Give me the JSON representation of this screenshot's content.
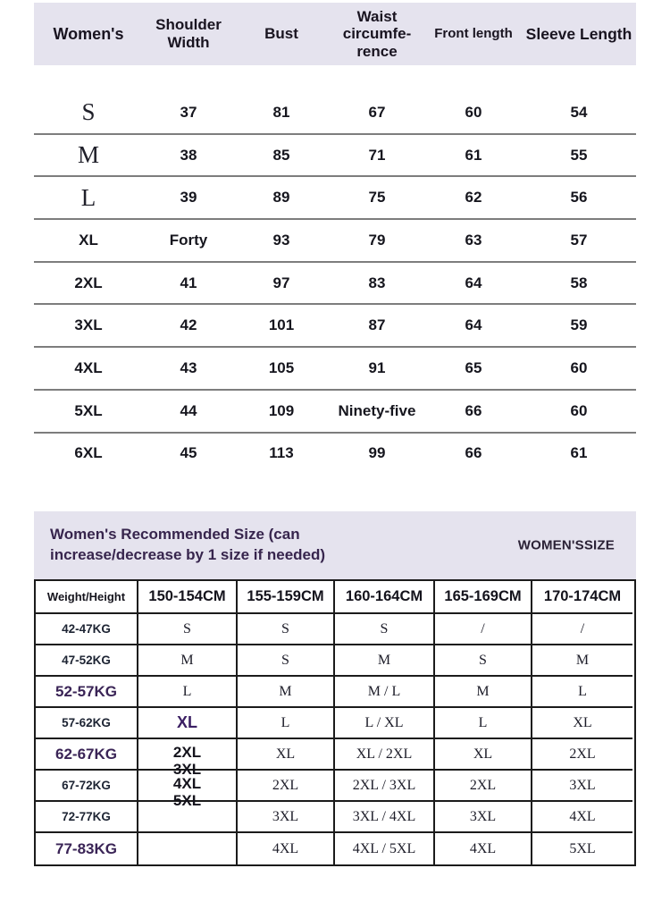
{
  "size_table": {
    "headers": [
      "Women's",
      "Shoulder Width",
      "Bust",
      "Waist circumfe-rence",
      "Front length",
      "Sleeve Length"
    ],
    "rows": [
      {
        "size": "S",
        "values": [
          "37",
          "81",
          "67",
          "60",
          "54"
        ]
      },
      {
        "size": "M",
        "values": [
          "38",
          "85",
          "71",
          "61",
          "55"
        ]
      },
      {
        "size": "L",
        "values": [
          "39",
          "89",
          "75",
          "62",
          "56"
        ]
      },
      {
        "size": "XL",
        "values": [
          "Forty",
          "93",
          "79",
          "63",
          "57"
        ]
      },
      {
        "size": "2XL",
        "values": [
          "41",
          "97",
          "83",
          "64",
          "58"
        ]
      },
      {
        "size": "3XL",
        "values": [
          "42",
          "101",
          "87",
          "64",
          "59"
        ]
      },
      {
        "size": "4XL",
        "values": [
          "43",
          "105",
          "91",
          "65",
          "60"
        ]
      },
      {
        "size": "5XL",
        "values": [
          "44",
          "109",
          "Ninety-five",
          "66",
          "60"
        ]
      },
      {
        "size": "6XL",
        "values": [
          "45",
          "113",
          "99",
          "66",
          "61"
        ]
      }
    ]
  },
  "recommend": {
    "title": "Women's Recommended Size (can increase/decrease by 1 size if needed)",
    "subtitle": "WOMEN'SSIZE",
    "headers": [
      "Weight/Height",
      "150-154CM",
      "155-159CM",
      "160-164CM",
      "165-169CM",
      "170-174CM"
    ],
    "rows": [
      {
        "weight": "42-47KG",
        "cells": [
          "S",
          "S",
          "S",
          "/",
          "/"
        ]
      },
      {
        "weight": "47-52KG",
        "cells": [
          "M",
          "S",
          "M",
          "S",
          "M"
        ]
      },
      {
        "weight": "52-57KG",
        "cells": [
          "L",
          "M",
          "M / L",
          "M",
          "L"
        ]
      },
      {
        "weight": "57-62KG",
        "cells": [
          "XL",
          "L",
          "L / XL",
          "L",
          "XL"
        ]
      },
      {
        "weight": "62-67KG",
        "cells": [
          "",
          "XL",
          "XL / 2XL",
          "XL",
          "2XL"
        ],
        "stack": [
          "2XL",
          "3XL"
        ]
      },
      {
        "weight": "67-72KG",
        "cells": [
          "",
          "2XL",
          "2XL / 3XL",
          "2XL",
          "3XL"
        ],
        "stack": [
          "4XL",
          "5XL"
        ]
      },
      {
        "weight": "72-77KG",
        "cells": [
          "",
          "3XL",
          "3XL / 4XL",
          "3XL",
          "4XL"
        ]
      },
      {
        "weight": "77-83KG",
        "cells": [
          "",
          "4XL",
          "4XL / 5XL",
          "4XL",
          "5XL"
        ]
      }
    ],
    "colors": {
      "banner_bg": "#e5e3ee",
      "title_text": "#37254d",
      "accent_purple": "#3b1f63",
      "border": "#1b1b1b"
    }
  }
}
